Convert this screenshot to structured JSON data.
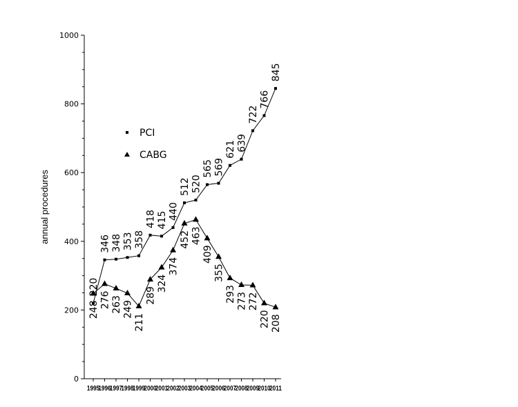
{
  "chart_data": {
    "type": "line",
    "ylabel": "annual procedures",
    "xlabel": "",
    "ylim": [
      0,
      1000
    ],
    "yticks": [
      "0",
      "200",
      "400",
      "600",
      "800",
      "1000"
    ],
    "x": [
      "1995",
      "1996",
      "1997",
      "1998",
      "1999",
      "2000",
      "2001",
      "2002",
      "2003",
      "2004",
      "2005",
      "2006",
      "2007",
      "2008",
      "2009",
      "2010",
      "2011"
    ],
    "series": [
      {
        "name": "PCI",
        "marker": "square",
        "values": [
          220,
          346,
          348,
          353,
          358,
          418,
          415,
          440,
          512,
          520,
          565,
          569,
          621,
          639,
          722,
          766,
          845
        ],
        "label_position": "above"
      },
      {
        "name": "CABG",
        "marker": "triangle",
        "values": [
          248,
          276,
          263,
          249,
          211,
          289,
          324,
          374,
          452,
          463,
          409,
          355,
          293,
          273,
          272,
          220,
          208
        ],
        "label_position": "below"
      }
    ],
    "legend_position": "upper-left",
    "grid": false
  }
}
